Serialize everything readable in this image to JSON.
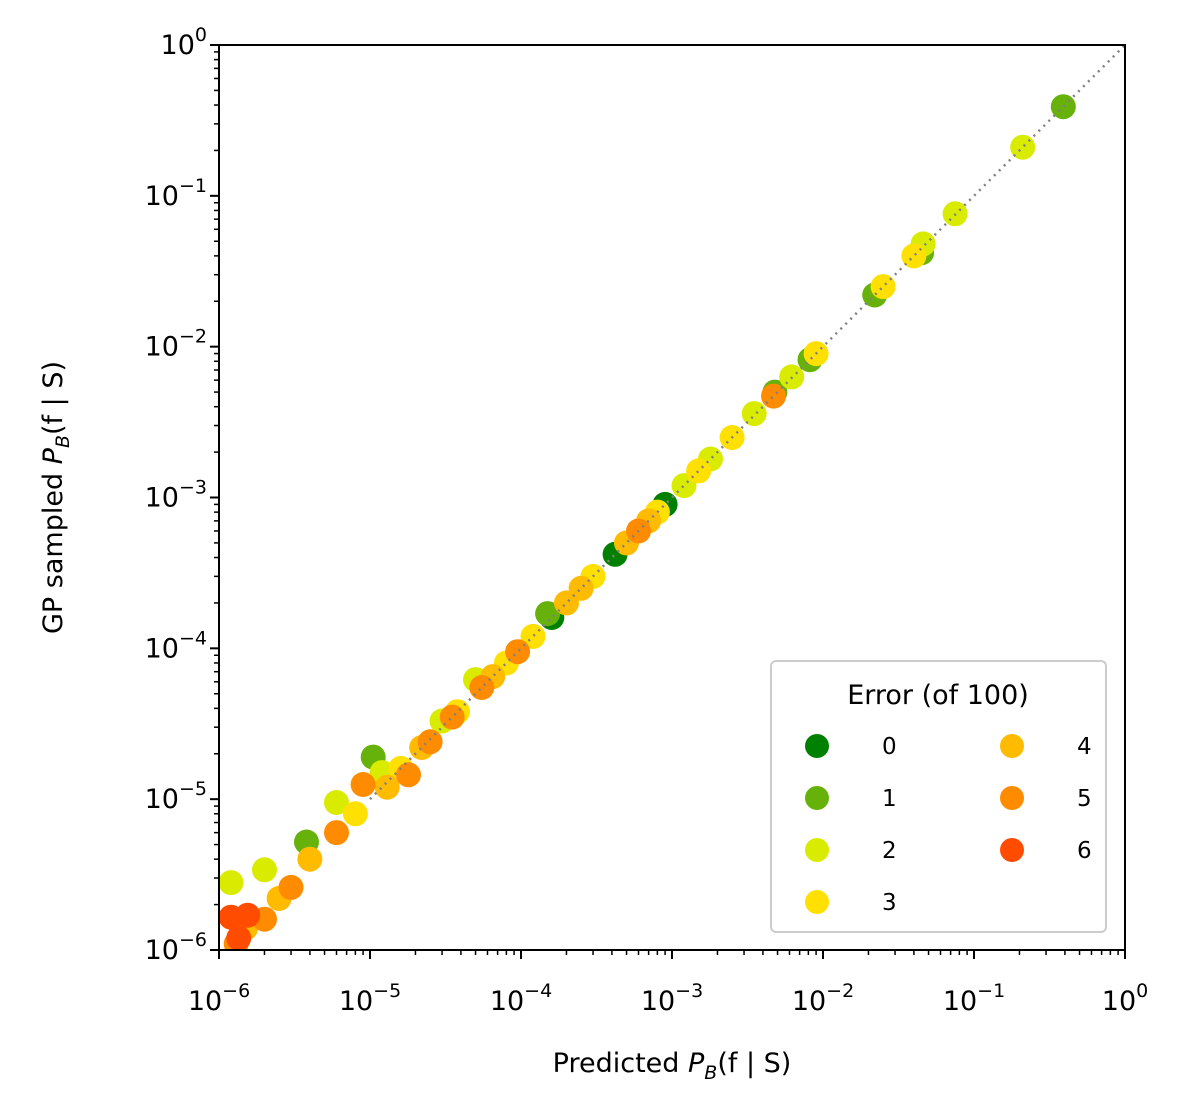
{
  "chart_data": {
    "type": "scatter",
    "xlabel": {
      "prefix": "Predicted ",
      "symbol": "P",
      "sub": "B",
      "args": "(f | S)"
    },
    "ylabel": {
      "prefix": "GP sampled ",
      "symbol": "P",
      "sub": "B",
      "args": "(f | S)"
    },
    "xscale": "log",
    "yscale": "log",
    "xlim": [
      1e-06,
      1
    ],
    "ylim": [
      1e-06,
      1
    ],
    "xticks": [
      {
        "base": "10",
        "exp": "−6"
      },
      {
        "base": "10",
        "exp": "−5"
      },
      {
        "base": "10",
        "exp": "−4"
      },
      {
        "base": "10",
        "exp": "−3"
      },
      {
        "base": "10",
        "exp": "−2"
      },
      {
        "base": "10",
        "exp": "−1"
      },
      {
        "base": "10",
        "exp": "0"
      }
    ],
    "yticks": [
      {
        "base": "10",
        "exp": "−6"
      },
      {
        "base": "10",
        "exp": "−5"
      },
      {
        "base": "10",
        "exp": "−4"
      },
      {
        "base": "10",
        "exp": "−3"
      },
      {
        "base": "10",
        "exp": "−2"
      },
      {
        "base": "10",
        "exp": "−1"
      },
      {
        "base": "10",
        "exp": "0"
      }
    ],
    "reference_line": {
      "style": "dotted",
      "color": "#808080",
      "from": [
        1e-05,
        1e-05
      ],
      "to": [
        1,
        1
      ]
    },
    "legend": {
      "title": "Error (of 100)",
      "position": "lower-right",
      "columns": 2
    },
    "series": [
      {
        "name": "0",
        "color": "#008000",
        "points": [
          [
            0.00042,
            0.00042
          ],
          [
            0.0009,
            0.0009
          ],
          [
            0.00016,
            0.00016
          ]
        ]
      },
      {
        "name": "1",
        "color": "#66b20a",
        "points": [
          [
            0.39,
            0.39
          ],
          [
            0.022,
            0.022
          ],
          [
            0.045,
            0.042
          ],
          [
            0.0082,
            0.0082
          ],
          [
            0.0048,
            0.005
          ],
          [
            1.05e-05,
            1.9e-05
          ],
          [
            3.8e-06,
            5.2e-06
          ],
          [
            0.00015,
            0.00017
          ]
        ]
      },
      {
        "name": "2",
        "color": "#d9ec00",
        "points": [
          [
            0.21,
            0.21
          ],
          [
            0.075,
            0.076
          ],
          [
            0.046,
            0.048
          ],
          [
            0.0062,
            0.0063
          ],
          [
            0.0035,
            0.0036
          ],
          [
            0.0018,
            0.0018
          ],
          [
            0.0012,
            0.0012
          ],
          [
            6e-06,
            9.5e-06
          ],
          [
            1.2e-05,
            1.5e-05
          ],
          [
            3e-05,
            3.3e-05
          ],
          [
            5e-05,
            6.2e-05
          ],
          [
            2e-06,
            3.4e-06
          ],
          [
            1.2e-06,
            2.8e-06
          ]
        ]
      },
      {
        "name": "3",
        "color": "#ffe000",
        "points": [
          [
            0.025,
            0.025
          ],
          [
            0.04,
            0.04
          ],
          [
            0.009,
            0.009
          ],
          [
            0.0025,
            0.0025
          ],
          [
            0.0015,
            0.0015
          ],
          [
            0.0008,
            0.0008
          ],
          [
            0.0003,
            0.0003
          ],
          [
            0.00012,
            0.00012
          ],
          [
            8e-05,
            8e-05
          ],
          [
            3.8e-05,
            3.8e-05
          ],
          [
            1.6e-05,
            1.6e-05
          ],
          [
            8e-06,
            8e-06
          ]
        ]
      },
      {
        "name": "4",
        "color": "#ffbb00",
        "points": [
          [
            0.0007,
            0.0007
          ],
          [
            0.0005,
            0.0005
          ],
          [
            0.00025,
            0.00025
          ],
          [
            0.0002,
            0.0002
          ],
          [
            6.5e-05,
            6.5e-05
          ],
          [
            2.2e-05,
            2.2e-05
          ],
          [
            1.3e-05,
            1.2e-05
          ],
          [
            4e-06,
            4e-06
          ],
          [
            2.5e-06,
            2.2e-06
          ],
          [
            1.5e-06,
            1.4e-06
          ]
        ]
      },
      {
        "name": "5",
        "color": "#ff8c00",
        "points": [
          [
            0.0047,
            0.0047
          ],
          [
            0.0006,
            0.0006
          ],
          [
            9.5e-05,
            9.5e-05
          ],
          [
            5.5e-05,
            5.5e-05
          ],
          [
            3.5e-05,
            3.5e-05
          ],
          [
            2.5e-05,
            2.4e-05
          ],
          [
            1.8e-05,
            1.45e-05
          ],
          [
            9e-06,
            1.25e-05
          ],
          [
            6e-06,
            6e-06
          ],
          [
            3e-06,
            2.6e-06
          ],
          [
            2e-06,
            1.6e-06
          ],
          [
            1.3e-06,
            1.1e-06
          ]
        ]
      },
      {
        "name": "6",
        "color": "#ff4c00",
        "points": [
          [
            1.2e-06,
            1.65e-06
          ],
          [
            1.55e-06,
            1.7e-06
          ],
          [
            1.35e-06,
            1.2e-06
          ]
        ]
      }
    ]
  }
}
